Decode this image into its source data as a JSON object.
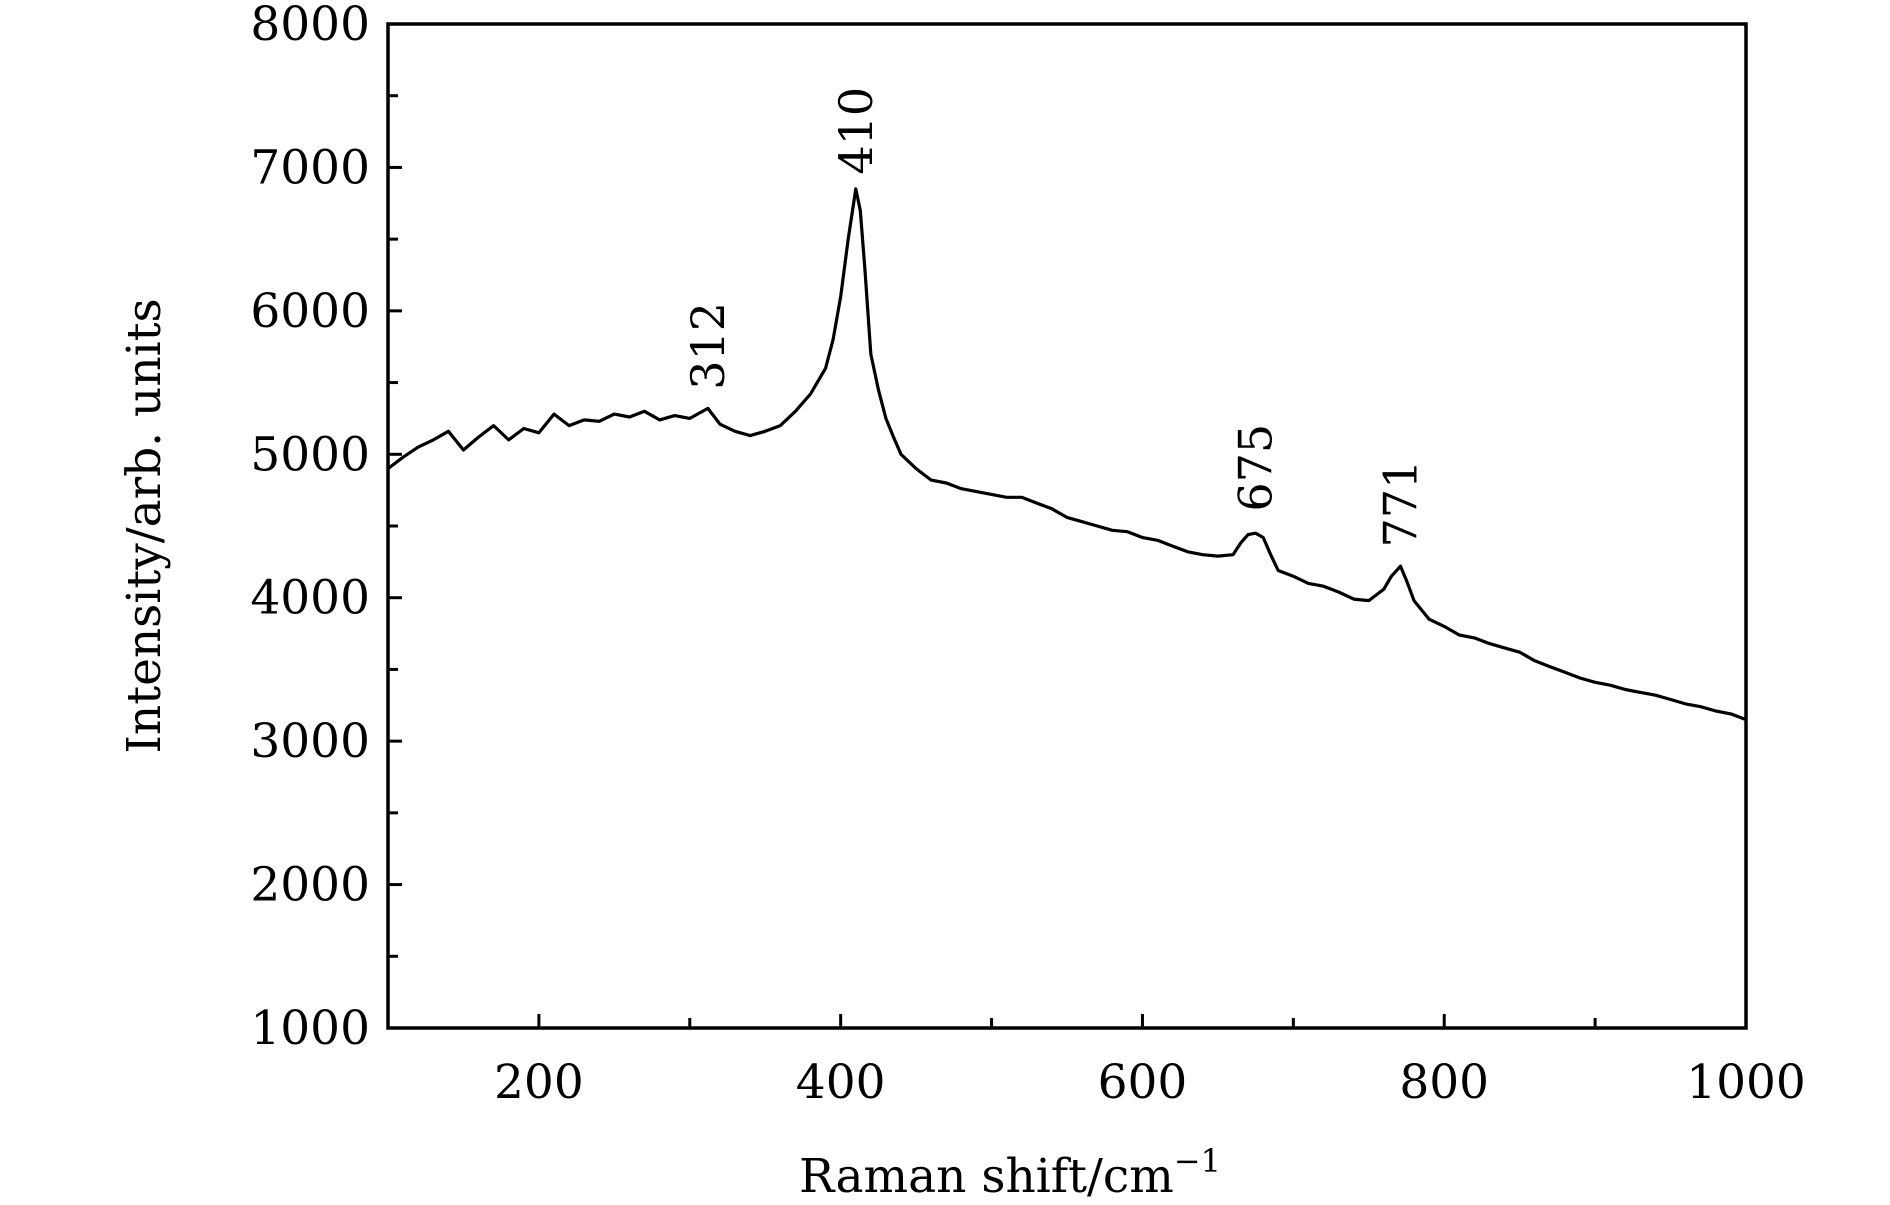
{
  "chart_data": {
    "type": "line",
    "title": "",
    "xlabel": "Raman shift/cm",
    "xlabel_sup": "−1",
    "ylabel": "Intensity/arb. units",
    "xlim": [
      100,
      1000
    ],
    "ylim": [
      1000,
      8000
    ],
    "xticks": [
      200,
      400,
      600,
      800,
      1000
    ],
    "yticks": [
      1000,
      2000,
      3000,
      4000,
      5000,
      6000,
      7000,
      8000
    ],
    "grid": false,
    "series": [
      {
        "name": "Raman spectrum",
        "color": "#000000",
        "x": [
          100,
          110,
          120,
          130,
          140,
          150,
          160,
          170,
          180,
          190,
          200,
          210,
          220,
          230,
          240,
          250,
          260,
          270,
          280,
          290,
          300,
          312,
          320,
          330,
          340,
          350,
          360,
          370,
          380,
          390,
          395,
          400,
          405,
          410,
          413,
          416,
          420,
          425,
          430,
          435,
          440,
          450,
          460,
          470,
          480,
          490,
          500,
          510,
          520,
          530,
          540,
          550,
          560,
          570,
          580,
          590,
          600,
          610,
          620,
          630,
          640,
          650,
          660,
          665,
          670,
          675,
          680,
          685,
          690,
          700,
          710,
          720,
          730,
          740,
          750,
          760,
          765,
          771,
          775,
          780,
          790,
          800,
          810,
          820,
          830,
          840,
          850,
          860,
          870,
          880,
          890,
          900,
          910,
          920,
          930,
          940,
          950,
          960,
          970,
          980,
          990,
          1000
        ],
        "y": [
          4900,
          4980,
          5050,
          5100,
          5160,
          5030,
          5120,
          5200,
          5100,
          5180,
          5150,
          5280,
          5200,
          5240,
          5230,
          5280,
          5260,
          5300,
          5240,
          5270,
          5250,
          5320,
          5210,
          5160,
          5130,
          5160,
          5200,
          5300,
          5420,
          5600,
          5800,
          6100,
          6500,
          6850,
          6700,
          6300,
          5700,
          5450,
          5250,
          5120,
          5000,
          4900,
          4820,
          4800,
          4760,
          4740,
          4720,
          4700,
          4700,
          4660,
          4620,
          4560,
          4530,
          4500,
          4470,
          4460,
          4420,
          4400,
          4360,
          4320,
          4300,
          4290,
          4300,
          4380,
          4440,
          4450,
          4420,
          4300,
          4190,
          4150,
          4100,
          4080,
          4040,
          3990,
          3980,
          4060,
          4150,
          4220,
          4120,
          3980,
          3850,
          3800,
          3740,
          3720,
          3680,
          3650,
          3620,
          3560,
          3520,
          3480,
          3440,
          3410,
          3390,
          3360,
          3340,
          3320,
          3290,
          3260,
          3240,
          3210,
          3190,
          3150
        ]
      }
    ],
    "annotations": [
      {
        "text": "312",
        "x": 312,
        "y": 5450
      },
      {
        "text": "410",
        "x": 410,
        "y": 6950
      },
      {
        "text": "675",
        "x": 675,
        "y": 4600
      },
      {
        "text": "771",
        "x": 771,
        "y": 4350
      }
    ]
  }
}
